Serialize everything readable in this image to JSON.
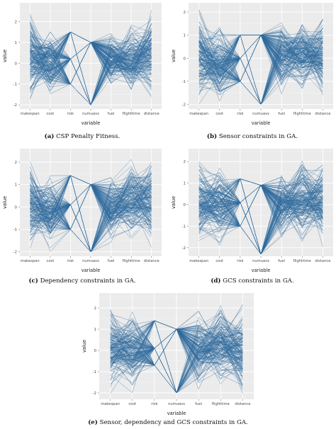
{
  "chart_data": [
    {
      "type": "line",
      "subtype": "parallel-coordinates",
      "panel_id": "(a)",
      "caption": "CSP Penalty Fitness.",
      "xlabel": "variable",
      "ylabel": "value",
      "categories": [
        "makespan",
        "cost",
        "risk",
        "numuavs",
        "fuel",
        "flighttime",
        "distance"
      ],
      "yticks": [
        -2,
        -1,
        0,
        1,
        2
      ],
      "ylim": [
        -2.2,
        2.9
      ],
      "grid": true,
      "line_color": "#2e6a9c",
      "background": "#ebebeb",
      "axis_ranges": {
        "makespan": [
          -2.0,
          2.8
        ],
        "cost": [
          -1.9,
          1.8
        ],
        "risk": [
          -1.0,
          1.5
        ],
        "numuavs": [
          -2.0,
          1.0
        ],
        "fuel": [
          -1.2,
          1.6
        ],
        "flighttime": [
          -1.6,
          2.0
        ],
        "distance": [
          -1.8,
          2.8
        ]
      },
      "discrete_levels": {
        "risk": [
          -1.0,
          0.2,
          1.5
        ],
        "numuavs": [
          -2.0,
          1.0
        ]
      }
    },
    {
      "type": "line",
      "subtype": "parallel-coordinates",
      "panel_id": "(b)",
      "caption": "Sensor constraints in GA.",
      "xlabel": "variable",
      "ylabel": "value",
      "categories": [
        "makespan",
        "cost",
        "risk",
        "numuavs",
        "fuel",
        "flighttime",
        "distance"
      ],
      "yticks": [
        -2,
        -1,
        0,
        1,
        2
      ],
      "ylim": [
        -2.2,
        2.4
      ],
      "grid": true,
      "line_color": "#2e6a9c",
      "background": "#ebebeb",
      "axis_ranges": {
        "makespan": [
          -2.0,
          2.2
        ],
        "cost": [
          -2.0,
          1.6
        ],
        "risk": [
          -1.0,
          1.0
        ],
        "numuavs": [
          -2.0,
          1.0
        ],
        "fuel": [
          -1.6,
          1.8
        ],
        "flighttime": [
          -1.6,
          1.9
        ],
        "distance": [
          -1.8,
          1.9
        ]
      },
      "discrete_levels": {
        "risk": [
          -1.0,
          0.0,
          1.0
        ],
        "numuavs": [
          -2.0,
          1.0
        ]
      }
    },
    {
      "type": "line",
      "subtype": "parallel-coordinates",
      "panel_id": "(c)",
      "caption": "Dependency constraints in GA.",
      "xlabel": "variable",
      "ylabel": "value",
      "categories": [
        "makespan",
        "cost",
        "risk",
        "numuavs",
        "fuel",
        "flighttime",
        "distance"
      ],
      "yticks": [
        -2,
        -1,
        0,
        1,
        2
      ],
      "ylim": [
        -2.2,
        2.6
      ],
      "grid": true,
      "line_color": "#2e6a9c",
      "background": "#ebebeb",
      "axis_ranges": {
        "makespan": [
          -2.0,
          2.1
        ],
        "cost": [
          -2.0,
          1.4
        ],
        "risk": [
          -1.0,
          1.4
        ],
        "numuavs": [
          -2.0,
          1.0
        ],
        "fuel": [
          -1.6,
          1.4
        ],
        "flighttime": [
          -1.8,
          2.2
        ],
        "distance": [
          -1.8,
          2.5
        ]
      },
      "discrete_levels": {
        "risk": [
          -1.0,
          0.1,
          1.4
        ],
        "numuavs": [
          -2.0,
          1.0
        ]
      }
    },
    {
      "type": "line",
      "subtype": "parallel-coordinates",
      "panel_id": "(d)",
      "caption": "GCS constraints in GA.",
      "xlabel": "variable",
      "ylabel": "value",
      "categories": [
        "makespan",
        "cost",
        "risk",
        "numuavs",
        "fuel",
        "flighttime",
        "distance"
      ],
      "yticks": [
        -2,
        -1,
        0,
        1,
        2
      ],
      "ylim": [
        -2.4,
        2.6
      ],
      "grid": true,
      "line_color": "#2e6a9c",
      "background": "#ebebeb",
      "axis_ranges": {
        "makespan": [
          -2.0,
          2.1
        ],
        "cost": [
          -2.0,
          2.0
        ],
        "risk": [
          -1.0,
          1.2
        ],
        "numuavs": [
          -2.3,
          0.9
        ],
        "fuel": [
          -1.6,
          1.6
        ],
        "flighttime": [
          -1.8,
          2.2
        ],
        "distance": [
          -2.0,
          2.1
        ]
      },
      "discrete_levels": {
        "risk": [
          -1.0,
          0.1,
          1.2
        ],
        "numuavs": [
          -2.3,
          0.9
        ]
      }
    },
    {
      "type": "line",
      "subtype": "parallel-coordinates",
      "panel_id": "(e)",
      "caption": "Sensor, dependency and GCS constraints in GA.",
      "xlabel": "variable",
      "ylabel": "value",
      "categories": [
        "makespan",
        "cost",
        "risk",
        "numuavs",
        "fuel",
        "flighttime",
        "distance"
      ],
      "yticks": [
        -2,
        -1,
        0,
        1,
        2
      ],
      "ylim": [
        -2.3,
        2.7
      ],
      "grid": true,
      "line_color": "#2e6a9c",
      "background": "#ebebeb",
      "axis_ranges": {
        "makespan": [
          -2.1,
          2.5
        ],
        "cost": [
          -2.0,
          2.0
        ],
        "risk": [
          -0.7,
          1.4
        ],
        "numuavs": [
          -2.0,
          1.0
        ],
        "fuel": [
          -2.0,
          2.0
        ],
        "flighttime": [
          -1.8,
          2.2
        ],
        "distance": [
          -2.2,
          2.2
        ]
      },
      "discrete_levels": {
        "risk": [
          -0.7,
          0.1,
          1.4
        ],
        "numuavs": [
          -2.0,
          1.0
        ]
      }
    }
  ]
}
